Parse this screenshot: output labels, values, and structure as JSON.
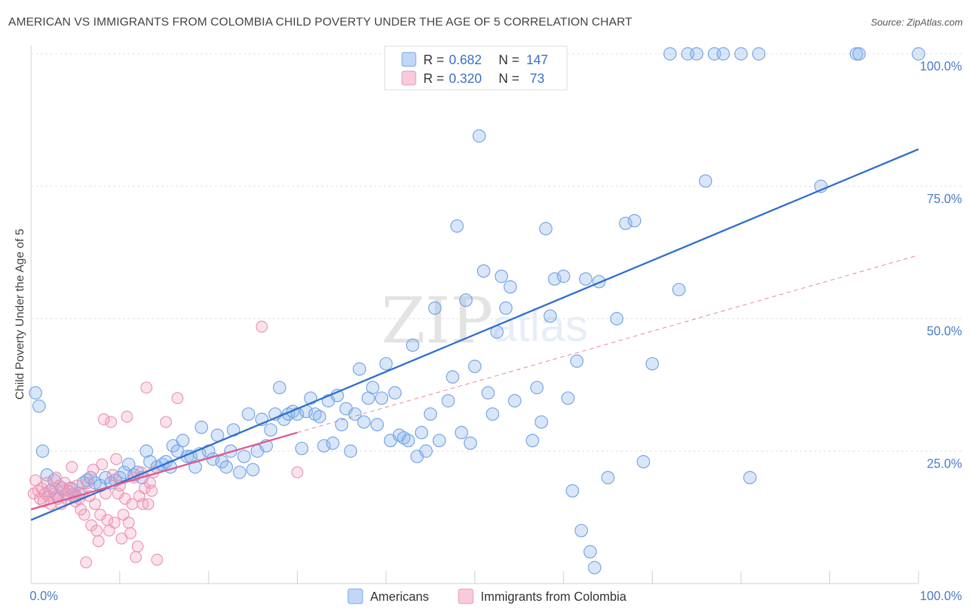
{
  "title": "AMERICAN VS IMMIGRANTS FROM COLOMBIA CHILD POVERTY UNDER THE AGE OF 5 CORRELATION CHART",
  "source": "Source: ZipAtlas.com",
  "watermark": {
    "zip": "ZIP",
    "atlas": "atlas"
  },
  "colors": {
    "americans": "#6fa0e6",
    "americans_fill": "rgba(143,182,236,0.35)",
    "americans_line": "#2f6fd0",
    "colombia": "#ec8fae",
    "colombia_fill": "rgba(242,160,190,0.30)",
    "colombia_line": "#e05a8a",
    "grid": "#dddddd",
    "axis_text": "#4a7cc9"
  },
  "legend": {
    "r_label": "R =",
    "n_label": "N =",
    "rows": [
      {
        "r": "0.682",
        "n": "147"
      },
      {
        "r": "0.320",
        "n": " 73"
      }
    ]
  },
  "chart_data": {
    "type": "scatter",
    "xlabel": "",
    "ylabel": "Child Poverty Under the Age of 5",
    "xlim": [
      0,
      100
    ],
    "ylim": [
      0,
      100
    ],
    "x_tick_labels": [
      "0.0%",
      "100.0%"
    ],
    "y_ticks": [
      {
        "value": 25,
        "label": "25.0%"
      },
      {
        "value": 50,
        "label": "50.0%"
      },
      {
        "value": 75,
        "label": "75.0%"
      },
      {
        "value": 100,
        "label": "100.0%"
      }
    ],
    "grid": true,
    "legend_position": "top-center",
    "series": [
      {
        "name": "Americans",
        "trend": {
          "x": [
            0,
            100
          ],
          "y": [
            12,
            82
          ]
        },
        "points": [
          [
            0.5,
            36
          ],
          [
            0.9,
            33.5
          ],
          [
            1.3,
            25
          ],
          [
            1.8,
            20.5
          ],
          [
            2.2,
            17.5
          ],
          [
            2.6,
            19.5
          ],
          [
            3,
            16.5
          ],
          [
            3.5,
            18
          ],
          [
            4,
            16.8
          ],
          [
            4.5,
            18
          ],
          [
            5,
            16.5
          ],
          [
            5.4,
            17
          ],
          [
            5.9,
            19
          ],
          [
            6.3,
            19.5
          ],
          [
            6.7,
            20
          ],
          [
            7.2,
            19
          ],
          [
            7.8,
            18.5
          ],
          [
            8.4,
            20
          ],
          [
            9,
            19
          ],
          [
            9.5,
            19.5
          ],
          [
            10,
            20
          ],
          [
            10.5,
            21
          ],
          [
            11,
            22.5
          ],
          [
            11.6,
            20.5
          ],
          [
            12,
            21
          ],
          [
            12.5,
            20
          ],
          [
            13,
            25
          ],
          [
            13.4,
            23
          ],
          [
            14.2,
            22
          ],
          [
            14.8,
            22.5
          ],
          [
            15.2,
            23
          ],
          [
            15.7,
            22
          ],
          [
            16,
            26
          ],
          [
            16.5,
            25
          ],
          [
            17.1,
            27
          ],
          [
            17.6,
            24
          ],
          [
            18,
            24
          ],
          [
            18.5,
            22
          ],
          [
            19,
            24.5
          ],
          [
            19.2,
            29.5
          ],
          [
            20,
            25
          ],
          [
            20.5,
            23.5
          ],
          [
            21,
            28
          ],
          [
            21.5,
            23
          ],
          [
            22,
            22
          ],
          [
            22.5,
            25
          ],
          [
            22.8,
            29
          ],
          [
            23.5,
            21
          ],
          [
            24,
            24
          ],
          [
            24.5,
            32
          ],
          [
            25,
            21.5
          ],
          [
            25.5,
            25
          ],
          [
            26,
            31
          ],
          [
            26.5,
            26
          ],
          [
            27,
            29
          ],
          [
            27.5,
            32
          ],
          [
            28,
            37
          ],
          [
            28.5,
            31
          ],
          [
            29,
            32
          ],
          [
            29.5,
            32.5
          ],
          [
            30,
            32
          ],
          [
            30.5,
            25.5
          ],
          [
            31,
            32.5
          ],
          [
            31.5,
            35
          ],
          [
            32,
            32
          ],
          [
            32.5,
            31.5
          ],
          [
            33,
            26
          ],
          [
            33.5,
            34.5
          ],
          [
            34,
            26.5
          ],
          [
            34.5,
            35.5
          ],
          [
            35,
            30
          ],
          [
            35.5,
            33
          ],
          [
            36,
            25
          ],
          [
            36.5,
            32
          ],
          [
            37,
            40.5
          ],
          [
            37.5,
            30.5
          ],
          [
            38,
            35
          ],
          [
            38.5,
            37
          ],
          [
            39,
            30
          ],
          [
            39.5,
            35
          ],
          [
            40,
            41.5
          ],
          [
            40.5,
            27
          ],
          [
            41,
            36
          ],
          [
            41.5,
            28
          ],
          [
            42,
            27.5
          ],
          [
            42.5,
            27
          ],
          [
            43,
            45
          ],
          [
            43.5,
            24
          ],
          [
            44,
            28.5
          ],
          [
            44.5,
            25
          ],
          [
            45,
            32
          ],
          [
            45.5,
            52
          ],
          [
            46,
            27
          ],
          [
            46.5,
            95.5
          ],
          [
            47,
            34.5
          ],
          [
            47.5,
            39
          ],
          [
            48,
            67.5
          ],
          [
            48.5,
            28.5
          ],
          [
            49,
            53.5
          ],
          [
            49.5,
            26.5
          ],
          [
            50,
            41
          ],
          [
            50.5,
            84.5
          ],
          [
            51,
            59
          ],
          [
            51.5,
            36
          ],
          [
            52,
            32
          ],
          [
            52.5,
            47.5
          ],
          [
            53,
            58
          ],
          [
            53.5,
            52
          ],
          [
            54,
            56
          ],
          [
            54.5,
            34.5
          ],
          [
            55,
            100
          ],
          [
            56,
            96.5
          ],
          [
            56.5,
            27
          ],
          [
            57,
            37
          ],
          [
            57.5,
            30.5
          ],
          [
            58,
            67
          ],
          [
            58.5,
            50.5
          ],
          [
            59,
            57.5
          ],
          [
            60,
            58
          ],
          [
            60.5,
            35
          ],
          [
            61,
            17.5
          ],
          [
            61.5,
            42
          ],
          [
            62,
            10
          ],
          [
            62.5,
            57.5
          ],
          [
            63,
            6
          ],
          [
            63.5,
            3
          ],
          [
            64,
            57
          ],
          [
            65,
            20
          ],
          [
            66,
            50
          ],
          [
            67,
            68
          ],
          [
            68,
            68.5
          ],
          [
            69,
            23
          ],
          [
            70,
            41.5
          ],
          [
            72,
            100
          ],
          [
            73,
            55.5
          ],
          [
            74,
            100
          ],
          [
            75,
            100
          ],
          [
            76,
            76
          ],
          [
            77,
            100
          ],
          [
            78,
            100
          ],
          [
            80,
            100
          ],
          [
            81,
            20
          ],
          [
            82,
            100
          ],
          [
            89,
            75
          ],
          [
            93,
            100
          ],
          [
            93.3,
            100
          ],
          [
            100,
            100
          ]
        ]
      },
      {
        "name": "Immigrants from Colombia",
        "trend": {
          "x": [
            0,
            30
          ],
          "y": [
            14,
            28.5
          ]
        },
        "trend_dashed": {
          "x": [
            30,
            100
          ],
          "y": [
            28.5,
            62
          ]
        },
        "points": [
          [
            0.3,
            17
          ],
          [
            0.5,
            19.5
          ],
          [
            0.8,
            17.5
          ],
          [
            1,
            16
          ],
          [
            1.2,
            18
          ],
          [
            1.4,
            15.5
          ],
          [
            1.6,
            17
          ],
          [
            1.8,
            19
          ],
          [
            2,
            16.5
          ],
          [
            2.2,
            15
          ],
          [
            2.4,
            18
          ],
          [
            2.6,
            17
          ],
          [
            2.8,
            20
          ],
          [
            3,
            16
          ],
          [
            3.2,
            18.5
          ],
          [
            3.4,
            15
          ],
          [
            3.6,
            17.5
          ],
          [
            3.8,
            19
          ],
          [
            4,
            16
          ],
          [
            4.2,
            17.5
          ],
          [
            4.4,
            18
          ],
          [
            4.6,
            22
          ],
          [
            4.8,
            17
          ],
          [
            5,
            15.5
          ],
          [
            5.2,
            18.5
          ],
          [
            5.4,
            16
          ],
          [
            5.6,
            14
          ],
          [
            5.8,
            17
          ],
          [
            6,
            13
          ],
          [
            6.2,
            4
          ],
          [
            6.4,
            19
          ],
          [
            6.6,
            16.5
          ],
          [
            6.8,
            11
          ],
          [
            7,
            21.5
          ],
          [
            7.2,
            15
          ],
          [
            7.4,
            10
          ],
          [
            7.6,
            8
          ],
          [
            7.8,
            13
          ],
          [
            8,
            22.5
          ],
          [
            8.2,
            31
          ],
          [
            8.4,
            17
          ],
          [
            8.6,
            12
          ],
          [
            8.8,
            10
          ],
          [
            9,
            30.5
          ],
          [
            9.2,
            20.5
          ],
          [
            9.4,
            11.5
          ],
          [
            9.6,
            23.5
          ],
          [
            9.8,
            17
          ],
          [
            10,
            18.5
          ],
          [
            10.2,
            8.5
          ],
          [
            10.4,
            13
          ],
          [
            10.6,
            16
          ],
          [
            10.8,
            31.5
          ],
          [
            11,
            11.5
          ],
          [
            11.2,
            9.5
          ],
          [
            11.4,
            15
          ],
          [
            11.6,
            20
          ],
          [
            11.8,
            5
          ],
          [
            12,
            7
          ],
          [
            12.2,
            16.5
          ],
          [
            12.4,
            21
          ],
          [
            12.6,
            15
          ],
          [
            12.8,
            18
          ],
          [
            13,
            37
          ],
          [
            13.2,
            15
          ],
          [
            13.4,
            19
          ],
          [
            13.6,
            17.5
          ],
          [
            13.8,
            21
          ],
          [
            14.2,
            4.5
          ],
          [
            15.2,
            30.5
          ],
          [
            16.5,
            35
          ],
          [
            26,
            48.5
          ],
          [
            30,
            21
          ]
        ]
      }
    ]
  },
  "bottom_legend": [
    {
      "label": "Americans"
    },
    {
      "label": "Immigrants from Colombia"
    }
  ]
}
